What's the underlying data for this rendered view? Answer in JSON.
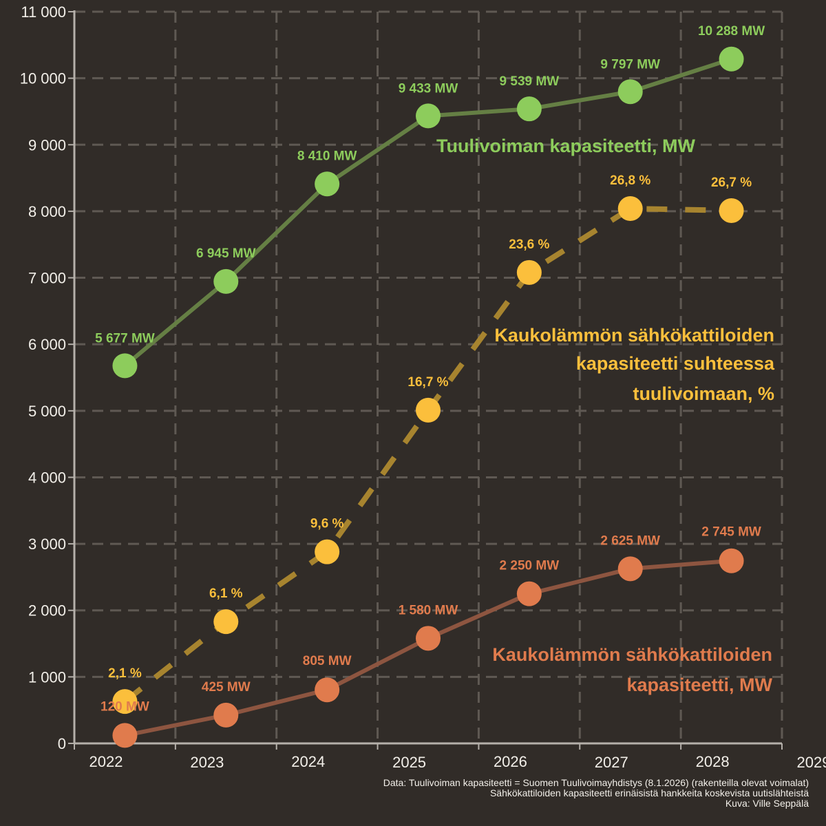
{
  "colors": {
    "background": "#312c28",
    "grid": "#5f5953",
    "axis": "#b5b0aa",
    "text": "#f2efe9",
    "wind": "#8dcc5c",
    "wind_line": "#657f44",
    "boiler": "#e07b4d",
    "boiler_line": "#8d5540",
    "ratio": "#fbbf3c",
    "ratio_line": "#a7842f"
  },
  "chart_data": {
    "type": "line",
    "x_ticks": [
      "2022",
      "2023",
      "2024",
      "2025",
      "2026",
      "2027",
      "2028",
      "2029"
    ],
    "y_ticks": [
      "0",
      "1 000",
      "2 000",
      "3 000",
      "4 000",
      "5 000",
      "6 000",
      "7 000",
      "8 000",
      "9 000",
      "10 000",
      "11 000"
    ],
    "ylim": [
      0,
      11000
    ],
    "xlim": [
      2022,
      2029
    ],
    "grid": true,
    "series": [
      {
        "id": "wind",
        "name": "Tuulivoiman kapasiteetti, MW",
        "style": "solid",
        "x": [
          2022.5,
          2023.5,
          2024.5,
          2025.5,
          2026.5,
          2027.5,
          2028.5
        ],
        "values": [
          5677,
          6945,
          8410,
          9433,
          9539,
          9797,
          10288
        ],
        "labels": [
          "5 677 MW",
          "6 945 MW",
          "8 410 MW",
          "9 433 MW",
          "9 539 MW",
          "9 797 MW",
          "10 288 MW"
        ]
      },
      {
        "id": "ratio",
        "name": "Kaukolämmön sähkökattiloiden kapasiteetti suhteessa tuulivoimaan, %",
        "style": "dashed",
        "unit": "%",
        "x": [
          2022.5,
          2023.5,
          2024.5,
          2025.5,
          2026.5,
          2027.5,
          2028.5
        ],
        "values": [
          2.1,
          6.1,
          9.6,
          16.7,
          23.6,
          26.8,
          26.7
        ],
        "scale": 300,
        "labels": [
          "2,1 %",
          "6,1 %",
          "9,6 %",
          "16,7 %",
          "23,6 %",
          "26,8 %",
          "26,7 %"
        ]
      },
      {
        "id": "boiler",
        "name": "Kaukolämmön sähkökattiloiden kapasiteetti, MW",
        "style": "solid",
        "x": [
          2022.5,
          2023.5,
          2024.5,
          2025.5,
          2026.5,
          2027.5,
          2028.5
        ],
        "values": [
          120,
          425,
          805,
          1580,
          2250,
          2625,
          2745
        ],
        "labels": [
          "120 MW",
          "425 MW",
          "805 MW",
          "1 580 MW",
          "2 250 MW",
          "2 625 MW",
          "2 745 MW"
        ]
      }
    ],
    "series_labels": {
      "wind": [
        "Tuulivoiman kapasiteetti, MW"
      ],
      "ratio": [
        "Kaukolämmön sähkökattiloiden",
        "kapasiteetti suhteessa",
        "tuulivoimaan, %"
      ],
      "boiler": [
        "Kaukolämmön sähkökattiloiden",
        "kapasiteetti, MW"
      ]
    }
  },
  "caption": {
    "line1": "Data: Tuulivoiman kapasiteetti = Suomen Tuulivoimayhdistys (8.1.2026) (rakenteilla olevat voimalat)",
    "line2": "Sähkökattiloiden kapasiteetti erinäisistä hankkeita koskevista uutislähteistä",
    "line3": "Kuva: Ville Seppälä"
  }
}
